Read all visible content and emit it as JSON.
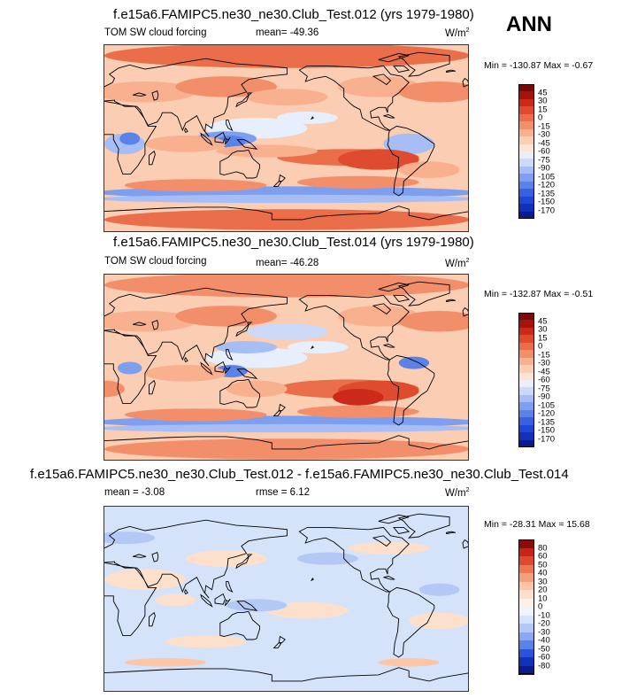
{
  "season": "ANN",
  "colors": {
    "field_scale": [
      "#0b1a8c",
      "#1230b8",
      "#1f46d4",
      "#3761e0",
      "#5a82e8",
      "#7e9ff0",
      "#a6bdf5",
      "#ccdaf8",
      "#e7eefc",
      "#fbe4d6",
      "#fbcdb3",
      "#f8b08f",
      "#f28f6a",
      "#ea6e4a",
      "#de4b2f",
      "#cb2a1a",
      "#a5130e",
      "#7a0a09"
    ],
    "diff_scale": [
      "#0b1a8c",
      "#1230b8",
      "#2c52dd",
      "#5a82e8",
      "#8aa8f0",
      "#b3c8f5",
      "#d4e2fa",
      "#eef3fd",
      "#fdf0e6",
      "#fde0cc",
      "#fbc5a6",
      "#f5a07c",
      "#ec7755",
      "#df4a2f",
      "#c6231a",
      "#8c0c0a"
    ]
  },
  "panels": [
    {
      "title": "f.e15a6.FAMIPC5.ne30_ne30.Club_Test.012 (yrs 1979-1980)",
      "left_label": "TOM SW cloud forcing",
      "stat_label": "mean=",
      "stat_value": "-49.36",
      "units": "W/m",
      "units_exp": "2",
      "min_label": "Min =",
      "min_value": "-130.87",
      "max_label": "Max =",
      "max_value": "-0.67"
    },
    {
      "title": "f.e15a6.FAMIPC5.ne30_ne30.Club_Test.014 (yrs 1979-1980)",
      "left_label": "TOM SW cloud forcing",
      "stat_label": "mean=",
      "stat_value": "-46.28",
      "units": "W/m",
      "units_exp": "2",
      "min_label": "Min =",
      "min_value": "-132.87",
      "max_label": "Max =",
      "max_value": "-0.51"
    },
    {
      "title": "f.e15a6.FAMIPC5.ne30_ne30.Club_Test.012 - f.e15a6.FAMIPC5.ne30_ne30.Club_Test.014",
      "left_label": "mean =",
      "left_value": "-3.08",
      "stat_label": "rmse =",
      "stat_value": "6.12",
      "units": "W/m",
      "units_exp": "2",
      "min_label": "Min =",
      "min_value": "-28.31",
      "max_label": "Max =",
      "max_value": "15.68"
    }
  ],
  "chart_data": [
    {
      "type": "heatmap",
      "title": "f.e15a6.FAMIPC5.ne30_ne30.Club_Test.012 (yrs 1979-1980)",
      "variable": "TOM SW cloud forcing",
      "units": "W/m2",
      "mean": -49.36,
      "min": -130.87,
      "max": -0.67,
      "colorbar_ticks": [
        45,
        30,
        15,
        0,
        -15,
        -30,
        -45,
        -60,
        -75,
        -90,
        -105,
        -120,
        -135,
        -150,
        -170
      ],
      "xlim": [
        0,
        360
      ],
      "ylim": [
        -90,
        90
      ]
    },
    {
      "type": "heatmap",
      "title": "f.e15a6.FAMIPC5.ne30_ne30.Club_Test.014 (yrs 1979-1980)",
      "variable": "TOM SW cloud forcing",
      "units": "W/m2",
      "mean": -46.28,
      "min": -132.87,
      "max": -0.51,
      "colorbar_ticks": [
        45,
        30,
        15,
        0,
        -15,
        -30,
        -45,
        -60,
        -75,
        -90,
        -105,
        -120,
        -135,
        -150,
        -170
      ],
      "xlim": [
        0,
        360
      ],
      "ylim": [
        -90,
        90
      ]
    },
    {
      "type": "heatmap",
      "title": "f.e15a6.FAMIPC5.ne30_ne30.Club_Test.012 - f.e15a6.FAMIPC5.ne30_ne30.Club_Test.014",
      "units": "W/m2",
      "mean": -3.08,
      "rmse": 6.12,
      "min": -28.31,
      "max": 15.68,
      "colorbar_ticks": [
        80,
        60,
        50,
        40,
        30,
        20,
        10,
        0,
        -10,
        -20,
        -30,
        -40,
        -50,
        -60,
        -80
      ],
      "xlim": [
        0,
        360
      ],
      "ylim": [
        -90,
        90
      ]
    }
  ]
}
